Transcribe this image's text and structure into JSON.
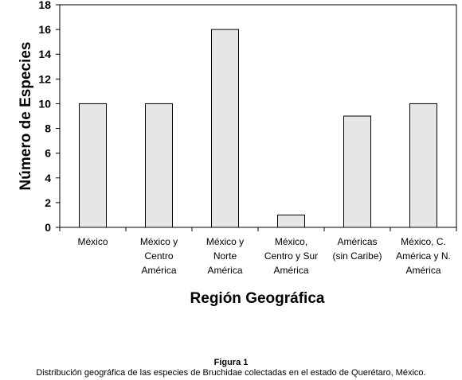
{
  "chart_data": {
    "type": "bar",
    "categories": [
      [
        "México"
      ],
      [
        "México y",
        "Centro",
        "América"
      ],
      [
        "México y",
        "Norte",
        "América"
      ],
      [
        "México,",
        "Centro y Sur",
        "América"
      ],
      [
        "Américas",
        "(sin Caribe)"
      ],
      [
        "México, C.",
        "América y N.",
        "América"
      ]
    ],
    "values": [
      10,
      10,
      16,
      1,
      9,
      10
    ],
    "xlabel": "Región Geográfica",
    "ylabel": "Número de Especies",
    "ylim": [
      0,
      18
    ],
    "yticks": [
      0,
      2,
      4,
      6,
      8,
      10,
      12,
      14,
      16,
      18
    ],
    "grid": false,
    "bar_color": "#e6e6e6",
    "bar_stroke": "#000000"
  },
  "caption": {
    "label": "Figura 1",
    "text": "Distribución geográfica de las especies de Bruchidae colectadas en el estado de Querétaro, México."
  }
}
